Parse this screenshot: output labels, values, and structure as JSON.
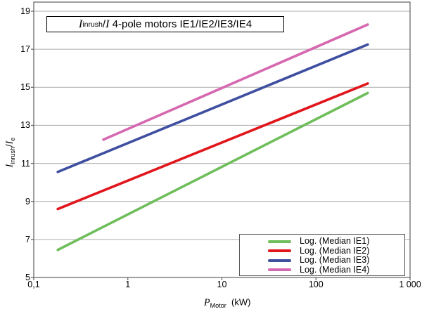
{
  "chart_data": {
    "type": "line",
    "title": "Iinrush/I 4-pole motors IE1/IE2/IE3/IE4",
    "title_parts": {
      "I1": "I",
      "sub1": "inrush",
      "slash": "/",
      "I2": "I",
      "rest": " 4-pole motors IE1/IE2/IE3/IE4"
    },
    "ylabel": "Iinrush/Ie",
    "ylabel_parts": {
      "I1": "I",
      "sub1": "inrush",
      "slash": "/",
      "I2": "I",
      "sub2": "e"
    },
    "xlabel": "PMotor (kW)",
    "xlabel_parts": {
      "P": "P",
      "sub": "Motor",
      "unit": "  (kW)"
    },
    "x_scale": "log",
    "xlim": [
      0.1,
      1000
    ],
    "ylim": [
      5,
      19
    ],
    "x_ticks": [
      0.1,
      1,
      10,
      100,
      1000
    ],
    "x_tick_labels": [
      "0,1",
      "1",
      "10",
      "100",
      "1 000"
    ],
    "y_ticks": [
      5,
      7,
      9,
      11,
      13,
      15,
      17,
      19
    ],
    "grid": "horizontal-only",
    "legend_position": "bottom-right",
    "colors": {
      "gridline": "#ACACAC",
      "axis_border": "#6B6B6B",
      "text": "#000000"
    },
    "series": [
      {
        "id": "ie1",
        "name": "Log. (Median IE1)",
        "color": "#6FBE5B",
        "trend": "logarithmic",
        "points": [
          [
            0.18,
            6.45
          ],
          [
            355,
            14.7
          ]
        ]
      },
      {
        "id": "ie2",
        "name": "Log. (Median IE2)",
        "color": "#E0161C",
        "trend": "logarithmic",
        "points": [
          [
            0.18,
            8.6
          ],
          [
            355,
            15.2
          ]
        ]
      },
      {
        "id": "ie3",
        "name": "Log. (Median IE3)",
        "color": "#3F4FA0",
        "trend": "logarithmic",
        "points": [
          [
            0.18,
            10.55
          ],
          [
            355,
            17.25
          ]
        ]
      },
      {
        "id": "ie4",
        "name": "Log. (Median IE4)",
        "color": "#D668B0",
        "trend": "logarithmic",
        "points": [
          [
            0.55,
            12.25
          ],
          [
            355,
            18.3
          ]
        ]
      }
    ]
  }
}
